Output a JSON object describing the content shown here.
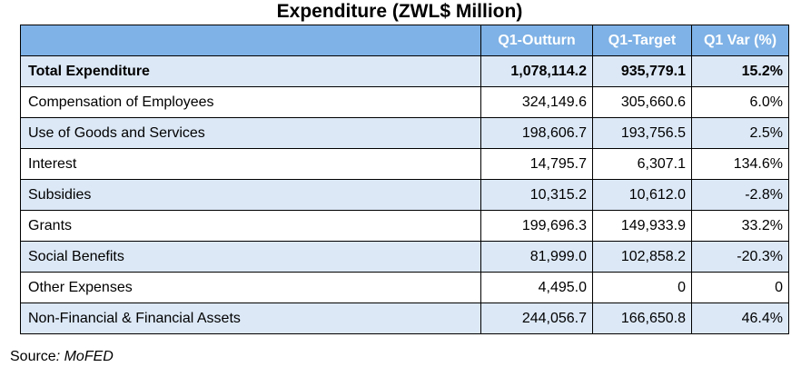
{
  "title": "Expenditure (ZWL$ Million)",
  "columns": [
    "",
    "Q1-Outturn",
    "Q1-Target",
    "Q1 Var (%)"
  ],
  "rows": [
    {
      "label": "Total Expenditure",
      "outturn": "1,078,114.2",
      "target": "935,779.1",
      "var": "15.2%"
    },
    {
      "label": "Compensation of Employees",
      "outturn": "324,149.6",
      "target": "305,660.6",
      "var": "6.0%"
    },
    {
      "label": "Use of Goods and Services",
      "outturn": "198,606.7",
      "target": "193,756.5",
      "var": "2.5%"
    },
    {
      "label": "Interest",
      "outturn": "14,795.7",
      "target": "6,307.1",
      "var": "134.6%"
    },
    {
      "label": "Subsidies",
      "outturn": "10,315.2",
      "target": "10,612.0",
      "var": "-2.8%"
    },
    {
      "label": "Grants",
      "outturn": "199,696.3",
      "target": "149,933.9",
      "var": "33.2%"
    },
    {
      "label": "Social Benefits",
      "outturn": "81,999.0",
      "target": "102,858.2",
      "var": "-20.3%"
    },
    {
      "label": "Other Expenses",
      "outturn": "4,495.0",
      "target": "0",
      "var": "0"
    },
    {
      "label": "Non-Financial & Financial Assets",
      "outturn": "244,056.7",
      "target": "166,650.8",
      "var": "46.4%"
    }
  ],
  "source": {
    "prefix": "Source",
    "sep": ": ",
    "name": "MoFED"
  },
  "colors": {
    "header_bg": "#7fb2e6",
    "stripe_bg": "#dce8f6"
  }
}
